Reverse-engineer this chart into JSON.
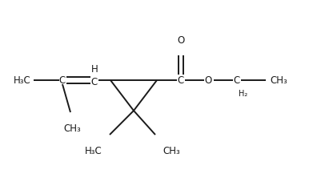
{
  "bg_color": "#ffffff",
  "line_color": "#1a1a1a",
  "text_color": "#1a1a1a",
  "font_size": 8.5,
  "figsize": [
    3.86,
    2.27
  ],
  "dpi": 100,
  "xlim": [
    0,
    386
  ],
  "ylim": [
    0,
    227
  ]
}
